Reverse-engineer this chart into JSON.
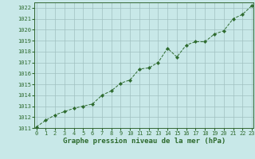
{
  "x": [
    0,
    1,
    2,
    3,
    4,
    5,
    6,
    7,
    8,
    9,
    10,
    11,
    12,
    13,
    14,
    15,
    16,
    17,
    18,
    19,
    20,
    21,
    22,
    23
  ],
  "y": [
    1011.1,
    1011.7,
    1012.2,
    1012.5,
    1012.8,
    1013.0,
    1013.2,
    1014.0,
    1014.4,
    1015.1,
    1015.4,
    1016.4,
    1016.5,
    1017.0,
    1018.3,
    1017.5,
    1018.6,
    1018.9,
    1018.9,
    1019.6,
    1019.9,
    1021.0,
    1021.4,
    1022.2
  ],
  "line_color": "#2d6a2d",
  "marker_color": "#2d6a2d",
  "bg_color": "#c8e8e8",
  "grid_color": "#a0c0c0",
  "title": "Graphe pression niveau de la mer (hPa)",
  "ylim_min": 1011,
  "ylim_max": 1022,
  "xlim_min": 0,
  "xlim_max": 23,
  "title_fontsize": 6.5,
  "tick_fontsize": 5.0
}
